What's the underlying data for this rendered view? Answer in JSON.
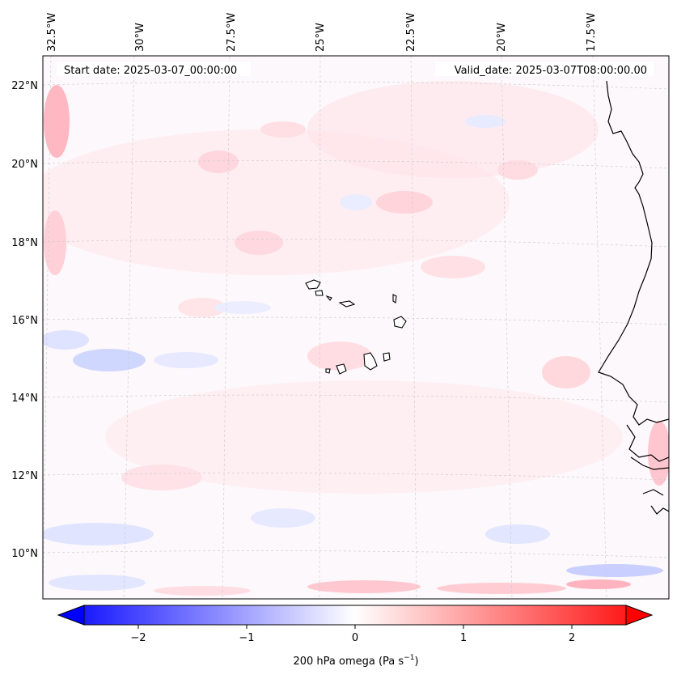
{
  "header": {
    "start_label": "Start date: 2025-03-07_00:00:00",
    "valid_label": "Valid_date: 2025-03-07T08:00:00.00"
  },
  "lon_ticks": [
    "32.5°W",
    "30°W",
    "27.5°W",
    "25°W",
    "22.5°W",
    "20°W",
    "17.5°W"
  ],
  "lat_ticks": [
    "22°N",
    "20°N",
    "18°N",
    "16°N",
    "14°N",
    "12°N",
    "10°N"
  ],
  "colorbar": {
    "ticks": [
      "−2",
      "−1",
      "0",
      "1",
      "2"
    ],
    "tick_values": [
      -2,
      -1,
      0,
      1,
      2
    ],
    "range": [
      -2.5,
      2.5
    ],
    "label_main": "200 hPa omega (Pa s",
    "label_sup": "−1",
    "label_end": ")",
    "colors": {
      "low": "#0000ff",
      "mid": "#ffffff",
      "high": "#ff0000"
    }
  },
  "chart_data": {
    "type": "heatmap",
    "variable": "200 hPa omega",
    "units": "Pa s^-1",
    "lon_range": [
      -33,
      -16
    ],
    "lat_range": [
      8.8,
      22.8
    ],
    "value_range": [
      -2.5,
      2.5
    ],
    "typical_values": [
      -0.4,
      0.4
    ]
  }
}
